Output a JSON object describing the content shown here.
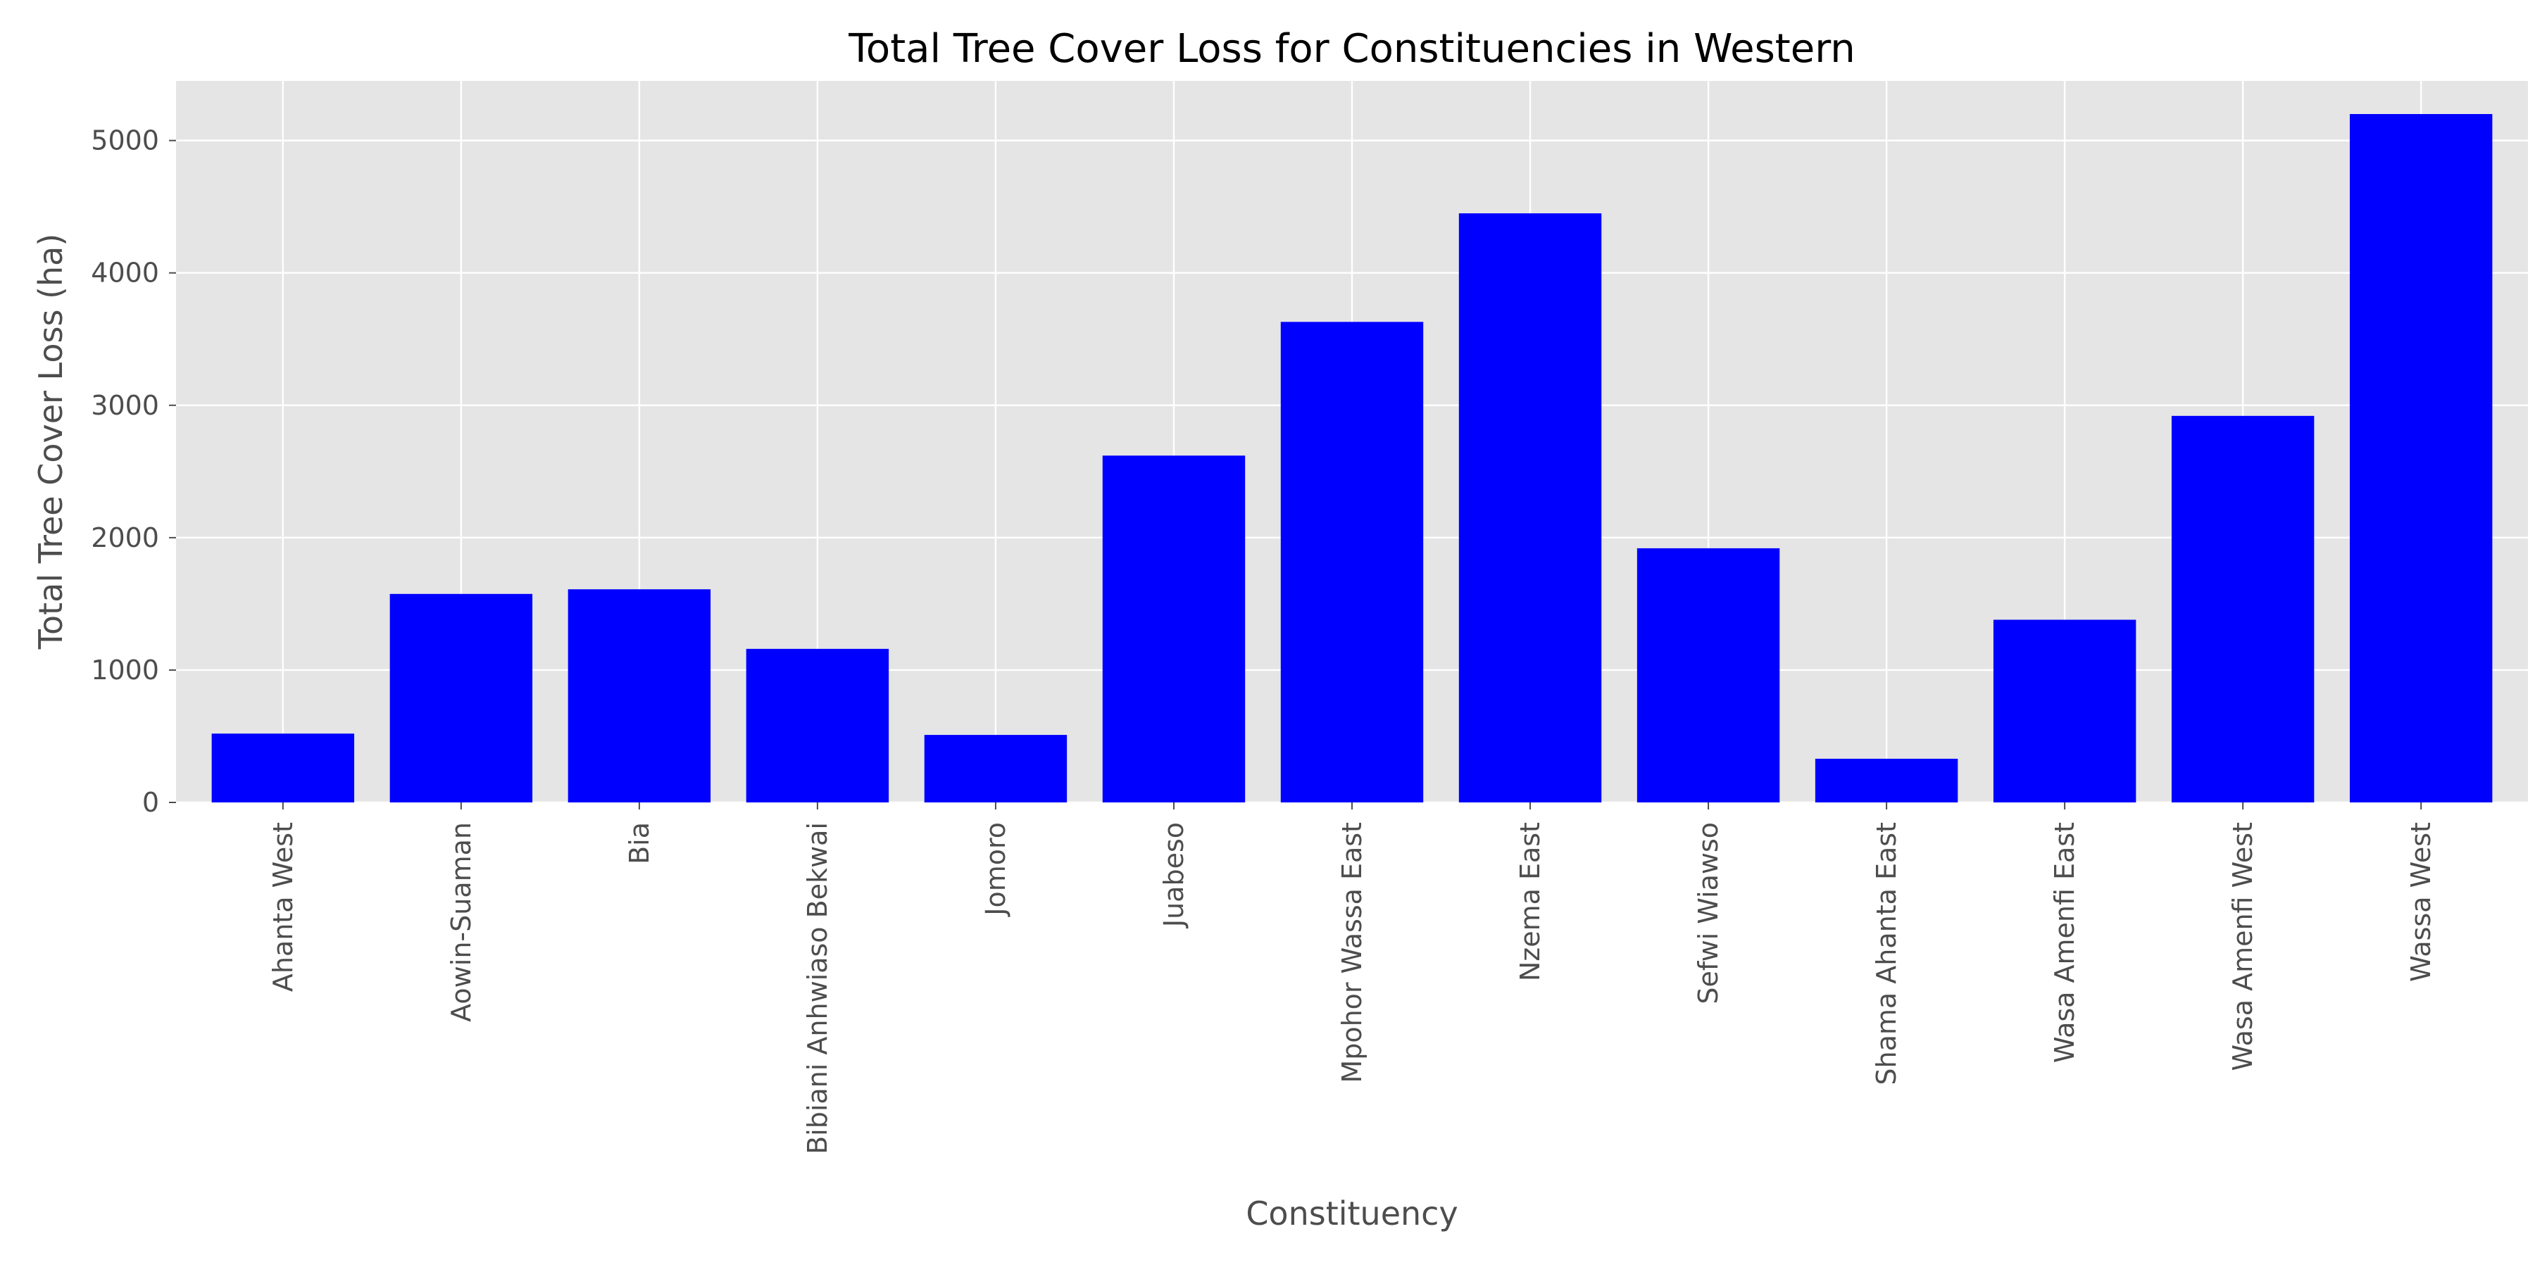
{
  "chart_data": {
    "type": "bar",
    "title": "Total Tree Cover Loss for Constituencies in Western",
    "xlabel": "Constituency",
    "ylabel": "Total Tree Cover Loss (ha)",
    "categories": [
      "Ahanta West",
      "Aowin-Suaman",
      "Bia",
      "Bibiani Anhwiaso Bekwai",
      "Jomoro",
      "Juabeso",
      "Mpohor Wassa East",
      "Nzema East",
      "Sefwi Wiawso",
      "Shama Ahanta East",
      "Wasa Amenfi East",
      "Wasa Amenfi West",
      "Wassa West"
    ],
    "values": [
      520,
      1575,
      1610,
      1160,
      510,
      2620,
      3630,
      4450,
      1920,
      330,
      1380,
      2920,
      5200
    ],
    "ylim": [
      0,
      5450
    ],
    "yticks": [
      0,
      1000,
      2000,
      3000,
      4000,
      5000
    ],
    "grid": true,
    "style": "ggplot",
    "bar_color": "#0000ff",
    "plot_background": "#e5e5e5",
    "grid_color": "#ffffff"
  }
}
